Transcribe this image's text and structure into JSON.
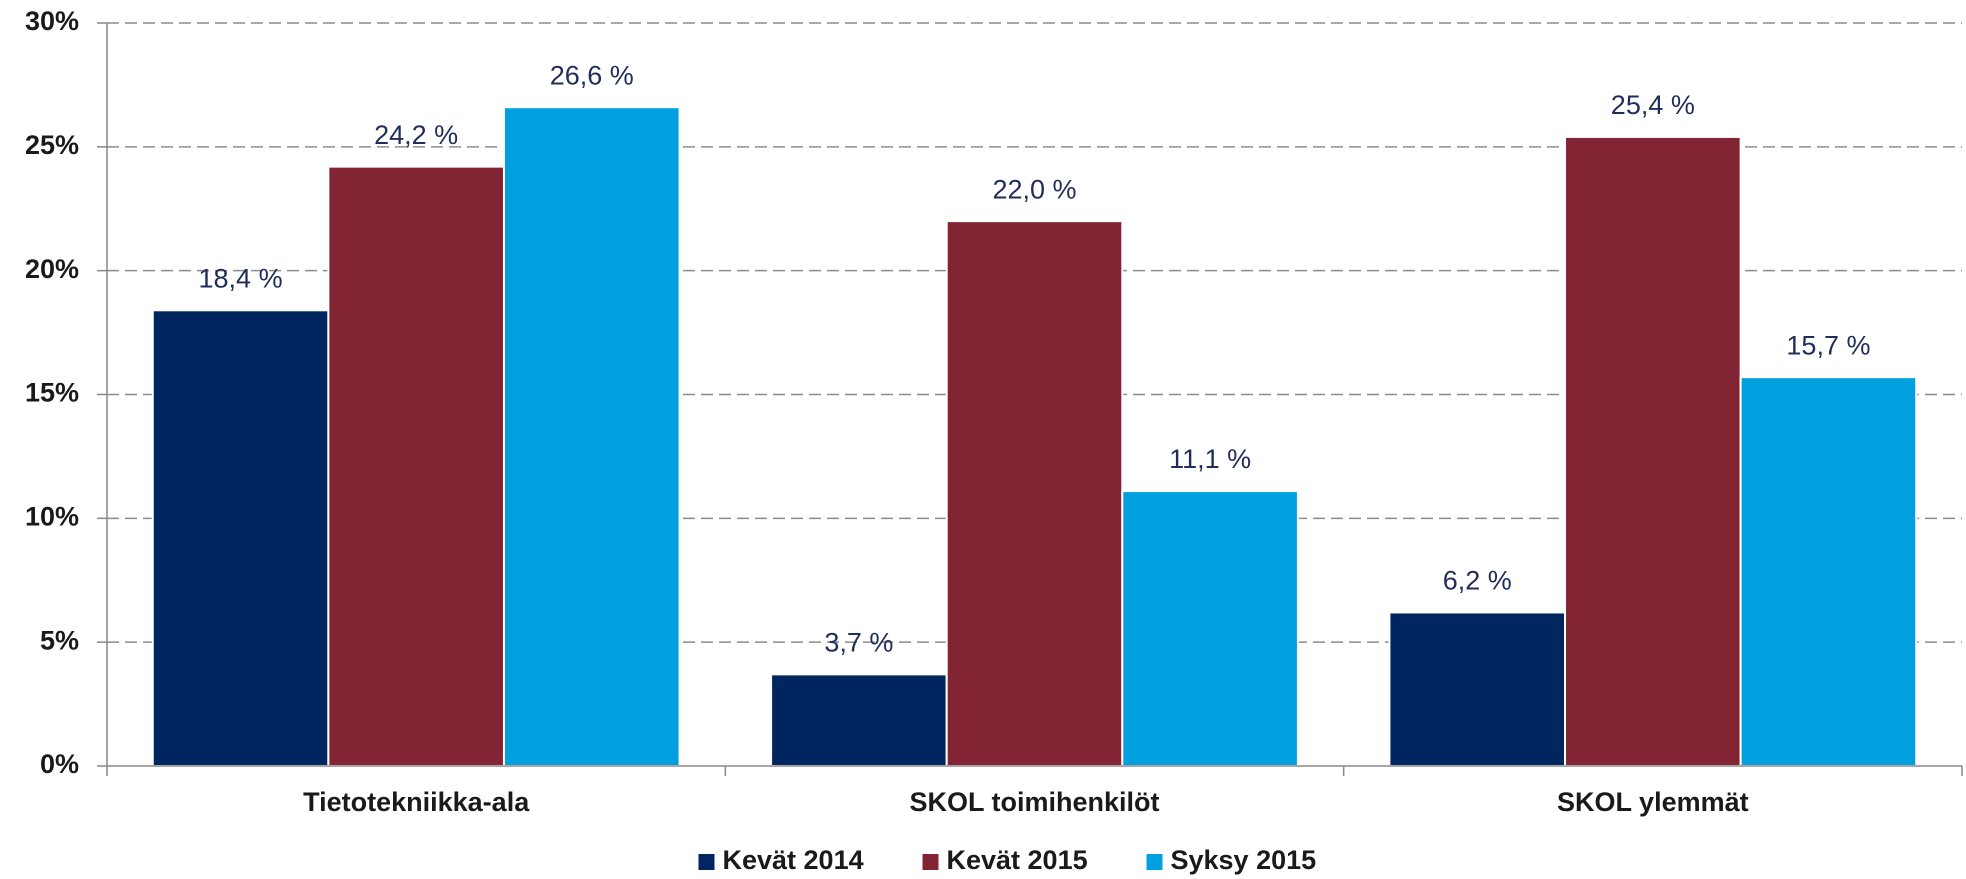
{
  "chart_data": {
    "type": "bar",
    "categories": [
      "Tietotekniikka-ala",
      "SKOL toimihenkilöt",
      "SKOL ylemmät"
    ],
    "series": [
      {
        "name": "Kevät 2014",
        "color": "#002660",
        "values": [
          18.4,
          3.7,
          6.2
        ],
        "value_labels": [
          "18,4 %",
          "3,7 %",
          "6,2 %"
        ]
      },
      {
        "name": "Kevät 2015",
        "color": "#822433",
        "values": [
          24.2,
          22.0,
          25.4
        ],
        "value_labels": [
          "24,2 %",
          "22,0 %",
          "25,4 %"
        ]
      },
      {
        "name": "Syksy 2015",
        "color": "#00a0de",
        "values": [
          26.6,
          11.1,
          15.7
        ],
        "value_labels": [
          "26,6 %",
          "11,1 %",
          "15,7 %"
        ]
      }
    ],
    "ylim": [
      0,
      30
    ],
    "yticks": [
      {
        "value": 0,
        "label": "0%"
      },
      {
        "value": 5,
        "label": "5%"
      },
      {
        "value": 10,
        "label": "10%"
      },
      {
        "value": 15,
        "label": "15%"
      },
      {
        "value": 20,
        "label": "20%"
      },
      {
        "value": 25,
        "label": "25%"
      },
      {
        "value": 30,
        "label": "30%"
      }
    ],
    "grid": true,
    "legend": "bottom"
  }
}
